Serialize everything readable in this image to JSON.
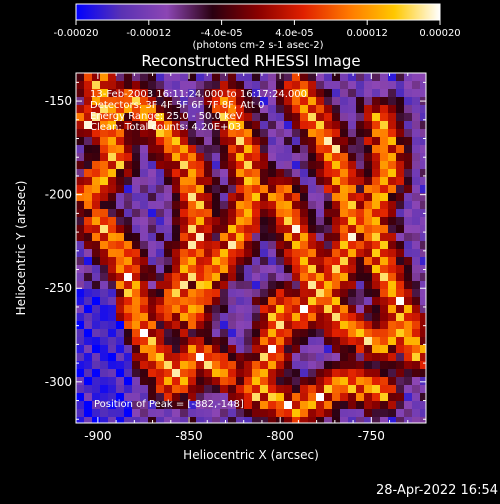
{
  "chart_data": {
    "type": "heatmap",
    "title": "Reconstructed RHESSI Image",
    "xlabel": "Heliocentric X (arcsec)",
    "ylabel": "Heliocentric Y (arcsec)",
    "xlim": [
      -912,
      -720
    ],
    "ylim": [
      -322,
      -135
    ],
    "x_ticks": [
      {
        "value": -900,
        "label": "-900"
      },
      {
        "value": -850,
        "label": "-850"
      },
      {
        "value": -800,
        "label": "-800"
      },
      {
        "value": -750,
        "label": "-750"
      }
    ],
    "y_ticks": [
      {
        "value": -150,
        "label": "-150"
      },
      {
        "value": -200,
        "label": "-200"
      },
      {
        "value": -250,
        "label": "-250"
      },
      {
        "value": -300,
        "label": "-300"
      }
    ],
    "colorbar": {
      "range": [
        -0.0002,
        0.0002
      ],
      "ticks": [
        {
          "value": -0.0002,
          "label": "-0.00020"
        },
        {
          "value": -0.00012,
          "label": "-0.00012"
        },
        {
          "value": -4e-05,
          "label": "-4.0e-05"
        },
        {
          "value": 4e-05,
          "label": "4.0e-05"
        },
        {
          "value": 0.00012,
          "label": "0.00012"
        },
        {
          "value": 0.0002,
          "label": "0.00020"
        }
      ],
      "units_label": "(photons cm-2 s-1 asec-2)",
      "stops": [
        "#0000ff",
        "#5a32b4",
        "#8c46b4",
        "#2a0010",
        "#8a0000",
        "#e02000",
        "#ff7800",
        "#ffc800",
        "#ffffff"
      ]
    },
    "annotations": [
      "13-Feb-2003 16:11:24.000 to 16:17:24.000",
      "Detectors: 3F 4F 5F 6F 7F 8F, Att 0",
      "Energy Range: 25.0 - 50.0 keV",
      "Clean: Total counts: 4.20E+03"
    ],
    "peak_label": "Position of Peak = [-882,-148]",
    "peak": {
      "x": -882,
      "y": -148
    },
    "grid": false
  },
  "footer": {
    "timestamp": "28-Apr-2022 16:54"
  }
}
